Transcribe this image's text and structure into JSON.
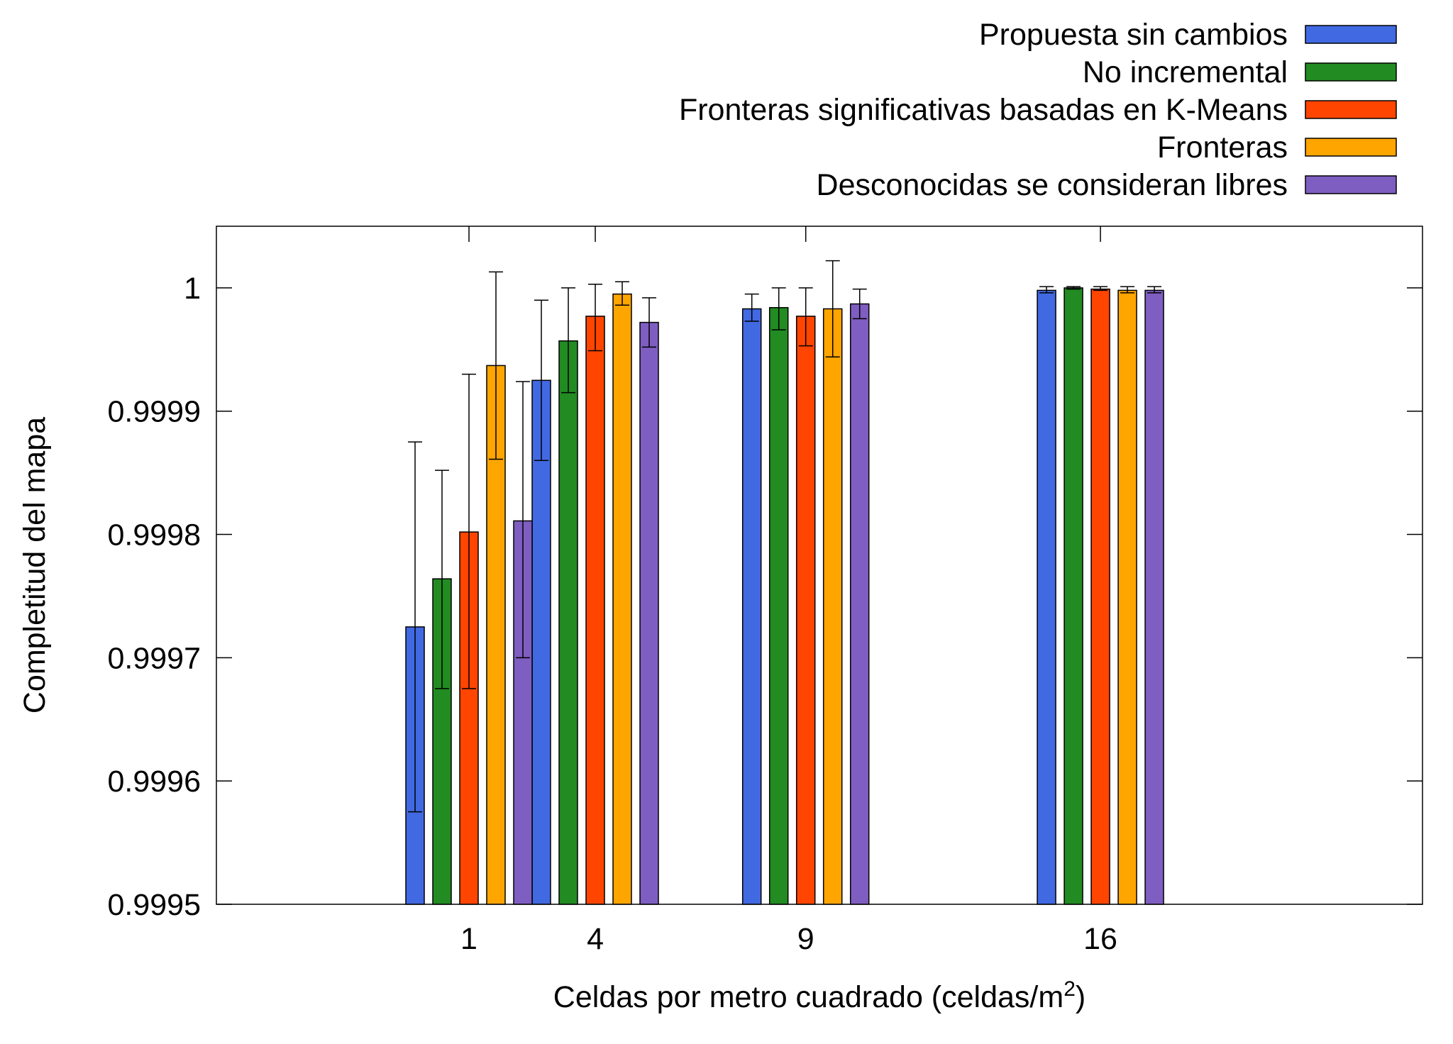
{
  "chart_data": {
    "type": "bar",
    "x": [
      1,
      4,
      9,
      16
    ],
    "xtick_labels": [
      "1",
      "4",
      "9",
      "16"
    ],
    "xlabel": "Celdas por metro cuadrado (celdas/m",
    "xlabel_sup": "2",
    "xlabel_end": ")",
    "ylabel": "Completitud del mapa",
    "ylim": [
      0.9995,
      1.00005
    ],
    "yticks": [
      0.9995,
      0.9996,
      0.9997,
      0.9998,
      0.9999,
      1
    ],
    "ytick_labels": [
      "0.9995",
      "0.9996",
      "0.9997",
      "0.9998",
      "0.9999",
      "1"
    ],
    "grid": false,
    "legend_position": "top-right, outside plot",
    "error_bars": true,
    "series": [
      {
        "name": "Propuesta sin cambios",
        "color": "#4169e1",
        "values": [
          0.999725,
          0.999925,
          0.999983,
          0.999998
        ],
        "err_low": [
          0.999575,
          0.99986,
          0.999973,
          0.999996
        ],
        "err_high": [
          0.999875,
          0.99999,
          0.999995,
          1.000001
        ]
      },
      {
        "name": "No incremental",
        "color": "#228b22",
        "values": [
          0.999764,
          0.999957,
          0.999984,
          1.0
        ],
        "err_low": [
          0.999675,
          0.999915,
          0.999966,
          0.999999
        ],
        "err_high": [
          0.999852,
          1.0,
          1.0,
          1.000001
        ]
      },
      {
        "name": "Fronteras significativas basadas en K-Means",
        "color": "#ff4500",
        "values": [
          0.999802,
          0.999977,
          0.999977,
          0.999999
        ],
        "err_low": [
          0.999675,
          0.999949,
          0.999953,
          0.999998
        ],
        "err_high": [
          0.99993,
          1.000003,
          1.0,
          1.000001
        ]
      },
      {
        "name": "Fronteras",
        "color": "#ffa500",
        "values": [
          0.999937,
          0.999995,
          0.999983,
          0.999998
        ],
        "err_low": [
          0.999861,
          0.999986,
          0.999944,
          0.999996
        ],
        "err_high": [
          1.000013,
          1.000005,
          1.000022,
          1.000001
        ]
      },
      {
        "name": "Desconocidas se consideran libres",
        "color": "#7e5ec1",
        "values": [
          0.999811,
          0.999972,
          0.999987,
          0.999998
        ],
        "err_low": [
          0.9997,
          0.999952,
          0.999975,
          0.999996
        ],
        "err_high": [
          0.999924,
          0.999992,
          0.999999,
          1.000001
        ]
      }
    ]
  }
}
